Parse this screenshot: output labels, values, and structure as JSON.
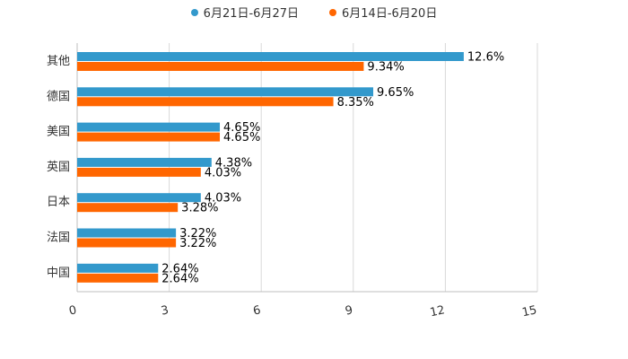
{
  "chart_data": {
    "type": "bar",
    "orientation": "horizontal",
    "title": "",
    "xlabel": "",
    "ylabel": "",
    "xlim": [
      0,
      15
    ],
    "xticks": [
      0,
      3,
      6,
      9,
      12,
      15
    ],
    "grid": true,
    "legend_position": "top-center",
    "categories": [
      "其他",
      "德国",
      "美国",
      "英国",
      "日本",
      "法国",
      "中国"
    ],
    "series": [
      {
        "name": "6月21日-6月27日",
        "color": "#3399cc",
        "values": [
          12.6,
          9.65,
          4.65,
          4.38,
          4.03,
          3.22,
          2.64
        ],
        "labels": [
          "12.6%",
          "9.65%",
          "4.65%",
          "4.38%",
          "4.03%",
          "3.22%",
          "2.64%"
        ]
      },
      {
        "name": "6月14日-6月20日",
        "color": "#ff6600",
        "values": [
          9.34,
          8.35,
          4.65,
          4.03,
          3.28,
          3.22,
          2.64
        ],
        "labels": [
          "9.34%",
          "8.35%",
          "4.65%",
          "4.03%",
          "3.28%",
          "3.22%",
          "2.64%"
        ]
      }
    ]
  }
}
